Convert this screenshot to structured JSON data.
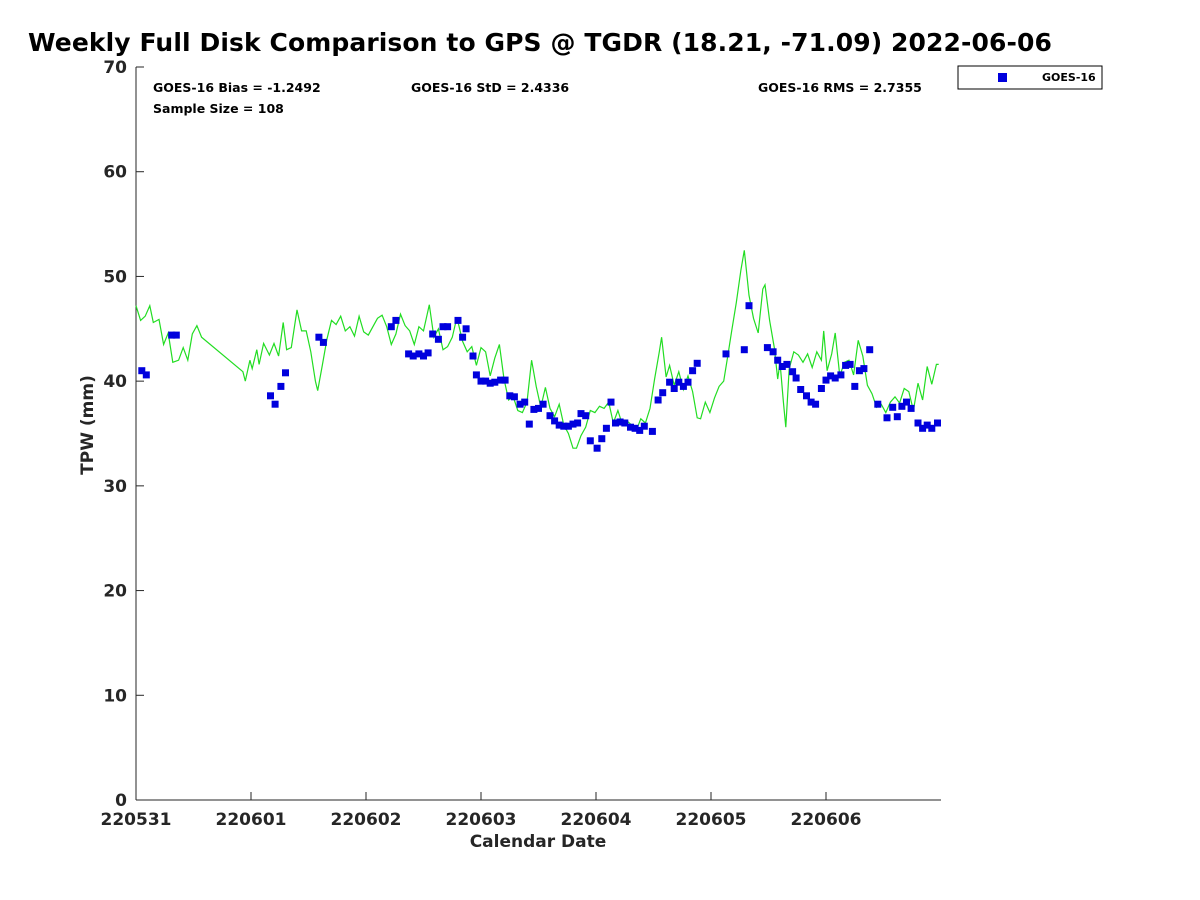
{
  "title": "Weekly Full Disk Comparison to GPS @ TGDR (18.21, -71.09) 2022-06-06",
  "stats": {
    "bias": "GOES-16 Bias = -1.2492",
    "std": "GOES-16 StD = 2.4336",
    "rms": "GOES-16 RMS = 2.7355",
    "sample": "Sample Size = 108"
  },
  "legend": {
    "label": "GOES-16",
    "placement": "top-right (outside plot)"
  },
  "colors": {
    "goes16_marker": "#0000dd",
    "gps_line": "#22dd22"
  },
  "chart_data": {
    "type": "scatter",
    "xlabel": "Calendar Date",
    "ylabel": "TPW (mm)",
    "xlim": [
      0,
      7
    ],
    "ylim": [
      0,
      70
    ],
    "x_unit": "days from start of 220531",
    "yticks": [
      0,
      10,
      20,
      30,
      40,
      50,
      60,
      70
    ],
    "xticks": [
      {
        "value": 0,
        "label": "220531"
      },
      {
        "value": 1,
        "label": "220601"
      },
      {
        "value": 2,
        "label": "220602"
      },
      {
        "value": 3,
        "label": "220603"
      },
      {
        "value": 4,
        "label": "220604"
      },
      {
        "value": 5,
        "label": "220605"
      },
      {
        "value": 6,
        "label": "220606"
      }
    ],
    "series": [
      {
        "name": "GOES-16",
        "kind": "scatter",
        "points": [
          [
            0.05,
            41.0
          ],
          [
            0.09,
            40.6
          ],
          [
            0.31,
            44.4
          ],
          [
            0.35,
            44.4
          ],
          [
            1.17,
            38.6
          ],
          [
            1.21,
            37.8
          ],
          [
            1.26,
            39.5
          ],
          [
            1.3,
            40.8
          ],
          [
            1.59,
            44.2
          ],
          [
            1.63,
            43.7
          ],
          [
            2.22,
            45.2
          ],
          [
            2.26,
            45.8
          ],
          [
            2.37,
            42.6
          ],
          [
            2.41,
            42.4
          ],
          [
            2.46,
            42.6
          ],
          [
            2.5,
            42.4
          ],
          [
            2.54,
            42.7
          ],
          [
            2.58,
            44.5
          ],
          [
            2.63,
            44.0
          ],
          [
            2.67,
            45.2
          ],
          [
            2.71,
            45.2
          ],
          [
            2.8,
            45.8
          ],
          [
            2.84,
            44.2
          ],
          [
            2.87,
            45.0
          ],
          [
            2.93,
            42.4
          ],
          [
            2.96,
            40.6
          ],
          [
            3.0,
            40.0
          ],
          [
            3.04,
            40.0
          ],
          [
            3.08,
            39.8
          ],
          [
            3.12,
            39.9
          ],
          [
            3.17,
            40.1
          ],
          [
            3.21,
            40.1
          ],
          [
            3.25,
            38.6
          ],
          [
            3.29,
            38.5
          ],
          [
            3.34,
            37.8
          ],
          [
            3.38,
            38.0
          ],
          [
            3.42,
            35.9
          ],
          [
            3.46,
            37.3
          ],
          [
            3.5,
            37.4
          ],
          [
            3.54,
            37.8
          ],
          [
            3.6,
            36.7
          ],
          [
            3.64,
            36.2
          ],
          [
            3.68,
            35.8
          ],
          [
            3.72,
            35.7
          ],
          [
            3.76,
            35.7
          ],
          [
            3.8,
            35.9
          ],
          [
            3.84,
            36.0
          ],
          [
            3.87,
            36.9
          ],
          [
            3.91,
            36.7
          ],
          [
            3.95,
            34.3
          ],
          [
            4.01,
            33.6
          ],
          [
            4.05,
            34.5
          ],
          [
            4.09,
            35.5
          ],
          [
            4.13,
            38.0
          ],
          [
            4.17,
            36.0
          ],
          [
            4.21,
            36.1
          ],
          [
            4.25,
            36.0
          ],
          [
            4.3,
            35.6
          ],
          [
            4.34,
            35.5
          ],
          [
            4.38,
            35.3
          ],
          [
            4.42,
            35.7
          ],
          [
            4.49,
            35.2
          ],
          [
            4.54,
            38.2
          ],
          [
            4.58,
            38.9
          ],
          [
            4.64,
            39.9
          ],
          [
            4.68,
            39.3
          ],
          [
            4.72,
            39.9
          ],
          [
            4.76,
            39.5
          ],
          [
            4.8,
            39.9
          ],
          [
            4.84,
            41.0
          ],
          [
            4.88,
            41.7
          ],
          [
            5.13,
            42.6
          ],
          [
            5.29,
            43.0
          ],
          [
            5.33,
            47.2
          ],
          [
            5.49,
            43.2
          ],
          [
            5.54,
            42.8
          ],
          [
            5.58,
            42.0
          ],
          [
            5.62,
            41.4
          ],
          [
            5.66,
            41.6
          ],
          [
            5.71,
            40.9
          ],
          [
            5.74,
            40.3
          ],
          [
            5.78,
            39.2
          ],
          [
            5.83,
            38.6
          ],
          [
            5.87,
            38.0
          ],
          [
            5.91,
            37.8
          ],
          [
            5.96,
            39.3
          ],
          [
            6.0,
            40.1
          ],
          [
            6.04,
            40.5
          ],
          [
            6.08,
            40.3
          ],
          [
            6.13,
            40.6
          ],
          [
            6.17,
            41.5
          ],
          [
            6.21,
            41.6
          ],
          [
            6.25,
            39.5
          ],
          [
            6.29,
            41.0
          ],
          [
            6.33,
            41.2
          ],
          [
            6.38,
            43.0
          ],
          [
            6.45,
            37.8
          ],
          [
            6.53,
            36.5
          ],
          [
            6.58,
            37.5
          ],
          [
            6.62,
            36.6
          ],
          [
            6.66,
            37.6
          ],
          [
            6.7,
            38.0
          ],
          [
            6.74,
            37.4
          ],
          [
            6.8,
            36.0
          ],
          [
            6.84,
            35.5
          ],
          [
            6.88,
            35.8
          ],
          [
            6.92,
            35.5
          ],
          [
            6.97,
            36.0
          ]
        ]
      },
      {
        "name": "GPS",
        "kind": "line",
        "points": [
          [
            0.0,
            47.2
          ],
          [
            0.04,
            45.8
          ],
          [
            0.08,
            46.2
          ],
          [
            0.12,
            47.2
          ],
          [
            0.15,
            45.6
          ],
          [
            0.2,
            45.9
          ],
          [
            0.24,
            43.5
          ],
          [
            0.28,
            44.6
          ],
          [
            0.32,
            41.8
          ],
          [
            0.37,
            42.0
          ],
          [
            0.41,
            43.2
          ],
          [
            0.45,
            42.0
          ],
          [
            0.49,
            44.5
          ],
          [
            0.53,
            45.3
          ],
          [
            0.57,
            44.2
          ],
          [
            0.93,
            40.9
          ],
          [
            0.95,
            40.0
          ],
          [
            0.99,
            42.0
          ],
          [
            1.01,
            41.2
          ],
          [
            1.05,
            43.0
          ],
          [
            1.07,
            41.6
          ],
          [
            1.11,
            43.6
          ],
          [
            1.16,
            42.5
          ],
          [
            1.2,
            43.6
          ],
          [
            1.24,
            42.4
          ],
          [
            1.28,
            45.6
          ],
          [
            1.31,
            43.0
          ],
          [
            1.35,
            43.2
          ],
          [
            1.4,
            46.8
          ],
          [
            1.44,
            44.8
          ],
          [
            1.48,
            44.8
          ],
          [
            1.52,
            42.8
          ],
          [
            1.56,
            40.0
          ],
          [
            1.58,
            39.1
          ],
          [
            1.62,
            41.5
          ],
          [
            1.66,
            44.0
          ],
          [
            1.7,
            45.8
          ],
          [
            1.74,
            45.4
          ],
          [
            1.78,
            46.2
          ],
          [
            1.82,
            44.8
          ],
          [
            1.86,
            45.2
          ],
          [
            1.9,
            44.3
          ],
          [
            1.94,
            46.2
          ],
          [
            1.98,
            44.7
          ],
          [
            2.02,
            44.4
          ],
          [
            2.06,
            45.2
          ],
          [
            2.1,
            46.0
          ],
          [
            2.14,
            46.3
          ],
          [
            2.18,
            45.2
          ],
          [
            2.22,
            43.5
          ],
          [
            2.26,
            44.5
          ],
          [
            2.3,
            46.4
          ],
          [
            2.34,
            45.3
          ],
          [
            2.38,
            44.8
          ],
          [
            2.42,
            43.5
          ],
          [
            2.46,
            45.2
          ],
          [
            2.5,
            44.8
          ],
          [
            2.55,
            47.3
          ],
          [
            2.59,
            44.2
          ],
          [
            2.63,
            45.0
          ],
          [
            2.67,
            43.0
          ],
          [
            2.71,
            43.3
          ],
          [
            2.75,
            44.2
          ],
          [
            2.79,
            46.1
          ],
          [
            2.84,
            43.8
          ],
          [
            2.88,
            42.8
          ],
          [
            2.92,
            43.3
          ],
          [
            2.96,
            41.5
          ],
          [
            3.0,
            43.2
          ],
          [
            3.04,
            42.8
          ],
          [
            3.08,
            40.5
          ],
          [
            3.12,
            42.2
          ],
          [
            3.16,
            43.5
          ],
          [
            3.2,
            40.2
          ],
          [
            3.24,
            38.2
          ],
          [
            3.28,
            38.5
          ],
          [
            3.32,
            37.2
          ],
          [
            3.36,
            37.0
          ],
          [
            3.4,
            38.0
          ],
          [
            3.44,
            42.0
          ],
          [
            3.48,
            39.5
          ],
          [
            3.52,
            37.5
          ],
          [
            3.56,
            39.4
          ],
          [
            3.6,
            37.4
          ],
          [
            3.64,
            36.6
          ],
          [
            3.68,
            37.8
          ],
          [
            3.72,
            35.8
          ],
          [
            3.76,
            35.0
          ],
          [
            3.8,
            33.6
          ],
          [
            3.83,
            33.6
          ],
          [
            3.87,
            34.8
          ],
          [
            3.91,
            35.6
          ],
          [
            3.95,
            37.2
          ],
          [
            3.99,
            37.0
          ],
          [
            4.03,
            37.6
          ],
          [
            4.07,
            37.4
          ],
          [
            4.11,
            38.0
          ],
          [
            4.15,
            36.0
          ],
          [
            4.19,
            37.2
          ],
          [
            4.23,
            35.8
          ],
          [
            4.27,
            36.2
          ],
          [
            4.31,
            35.8
          ],
          [
            4.35,
            35.3
          ],
          [
            4.39,
            36.4
          ],
          [
            4.43,
            36.0
          ],
          [
            4.47,
            37.4
          ],
          [
            4.51,
            40.2
          ],
          [
            4.55,
            42.8
          ],
          [
            4.57,
            44.2
          ],
          [
            4.61,
            40.4
          ],
          [
            4.64,
            41.5
          ],
          [
            4.68,
            39.6
          ],
          [
            4.72,
            40.9
          ],
          [
            4.76,
            39.2
          ],
          [
            4.8,
            40.5
          ],
          [
            4.84,
            39.0
          ],
          [
            4.88,
            36.5
          ],
          [
            4.91,
            36.4
          ],
          [
            4.95,
            38.0
          ],
          [
            4.99,
            37.0
          ],
          [
            5.03,
            38.4
          ],
          [
            5.07,
            39.5
          ],
          [
            5.11,
            40.0
          ],
          [
            5.14,
            42.0
          ],
          [
            5.18,
            44.8
          ],
          [
            5.22,
            47.5
          ],
          [
            5.26,
            50.6
          ],
          [
            5.29,
            52.5
          ],
          [
            5.33,
            48.2
          ],
          [
            5.37,
            46.0
          ],
          [
            5.41,
            44.6
          ],
          [
            5.45,
            48.8
          ],
          [
            5.47,
            49.2
          ],
          [
            5.51,
            45.8
          ],
          [
            5.55,
            43.2
          ],
          [
            5.58,
            40.2
          ],
          [
            5.6,
            41.8
          ],
          [
            5.63,
            38.0
          ],
          [
            5.65,
            35.6
          ],
          [
            5.68,
            41.2
          ],
          [
            5.72,
            42.8
          ],
          [
            5.76,
            42.5
          ],
          [
            5.8,
            41.8
          ],
          [
            5.84,
            42.6
          ],
          [
            5.88,
            41.3
          ],
          [
            5.92,
            42.8
          ],
          [
            5.96,
            42.0
          ],
          [
            5.98,
            44.8
          ],
          [
            6.01,
            41.0
          ],
          [
            6.05,
            42.6
          ],
          [
            6.08,
            44.6
          ],
          [
            6.12,
            40.5
          ],
          [
            6.16,
            41.8
          ],
          [
            6.2,
            42.0
          ],
          [
            6.24,
            40.6
          ],
          [
            6.28,
            43.9
          ],
          [
            6.32,
            42.4
          ],
          [
            6.36,
            39.6
          ],
          [
            6.4,
            38.8
          ],
          [
            6.44,
            37.5
          ],
          [
            6.48,
            37.8
          ],
          [
            6.52,
            37.0
          ],
          [
            6.56,
            38.0
          ],
          [
            6.6,
            38.5
          ],
          [
            6.64,
            37.9
          ],
          [
            6.68,
            39.3
          ],
          [
            6.72,
            39.0
          ],
          [
            6.76,
            37.2
          ],
          [
            6.8,
            39.8
          ],
          [
            6.84,
            38.2
          ],
          [
            6.88,
            41.4
          ],
          [
            6.92,
            39.7
          ],
          [
            6.96,
            41.6
          ],
          [
            6.98,
            41.6
          ]
        ]
      }
    ]
  }
}
